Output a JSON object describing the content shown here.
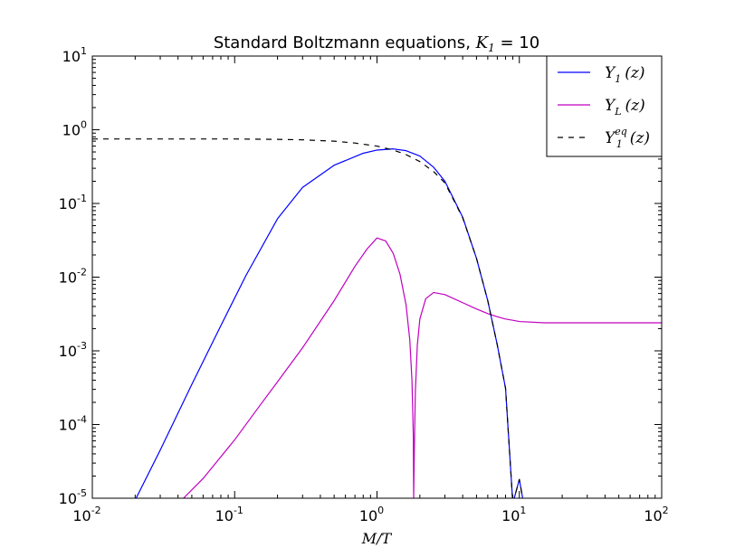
{
  "chart_data": {
    "type": "line",
    "title_text": "Standard Boltzmann equations, ",
    "title_math": "K",
    "title_math_sub": "1",
    "title_tail": " = 10",
    "xlabel": "M/T",
    "xscale": "log",
    "yscale": "log",
    "xlim": [
      0.01,
      100
    ],
    "ylim": [
      1e-05,
      10
    ],
    "x_ticks": [
      {
        "base": "10",
        "exp": "-2"
      },
      {
        "base": "10",
        "exp": "-1"
      },
      {
        "base": "10",
        "exp": "0"
      },
      {
        "base": "10",
        "exp": "1"
      },
      {
        "base": "10",
        "exp": "2"
      }
    ],
    "y_ticks": [
      {
        "base": "10",
        "exp": "-5"
      },
      {
        "base": "10",
        "exp": "-4"
      },
      {
        "base": "10",
        "exp": "-3"
      },
      {
        "base": "10",
        "exp": "-2"
      },
      {
        "base": "10",
        "exp": "-1"
      },
      {
        "base": "10",
        "exp": "0"
      },
      {
        "base": "10",
        "exp": "1"
      }
    ],
    "grid": false,
    "legend_position": "top-right",
    "series": [
      {
        "name": "Y1(z)",
        "legend_main": "Y",
        "legend_sub": "1",
        "legend_sup": "",
        "legend_arg": "(z)",
        "color": "#0000ff",
        "dash": "solid",
        "x": [
          0.0203,
          0.03,
          0.05,
          0.08,
          0.12,
          0.2,
          0.3,
          0.5,
          0.8,
          1.0,
          1.3,
          1.6,
          2.0,
          2.5,
          3.0,
          4.0,
          5.0,
          6.0,
          7.0,
          8.0,
          9.0,
          10.0,
          12.0,
          14.0,
          15.1
        ],
        "y": [
          1e-05,
          4.5e-05,
          0.00035,
          0.0022,
          0.0105,
          0.062,
          0.165,
          0.33,
          0.48,
          0.53,
          0.55,
          0.52,
          0.44,
          0.31,
          0.2,
          0.065,
          0.018,
          0.0048,
          0.0012,
          0.00031,
          8.5e-06,
          1.8e-05,
          2.5e-06,
          1.2e-06,
          1e-05
        ]
      },
      {
        "name": "YL(z)",
        "legend_main": "Y",
        "legend_sub": "L",
        "legend_sup": "",
        "legend_arg": "(z)",
        "color": "#c000c0",
        "dash": "solid",
        "x": [
          0.0437,
          0.06,
          0.1,
          0.15,
          0.2,
          0.3,
          0.5,
          0.7,
          0.85,
          1.0,
          1.15,
          1.3,
          1.45,
          1.6,
          1.7,
          1.76,
          1.8,
          1.81,
          1.83,
          1.86,
          1.92,
          2.0,
          2.2,
          2.5,
          3.0,
          4.0,
          5.0,
          6.0,
          7.0,
          8.0,
          9.0,
          10.0,
          15.0,
          20.0,
          30.0,
          50.0,
          100.0
        ],
        "y": [
          1e-05,
          1.85e-05,
          6.2e-05,
          0.00018,
          0.00038,
          0.0011,
          0.0048,
          0.014,
          0.024,
          0.034,
          0.031,
          0.021,
          0.011,
          0.0042,
          0.0014,
          0.0004,
          7e-05,
          1e-05,
          5e-05,
          0.00028,
          0.0012,
          0.0027,
          0.0051,
          0.0062,
          0.0058,
          0.0045,
          0.0037,
          0.0032,
          0.0029,
          0.0027,
          0.0026,
          0.0025,
          0.0024,
          0.0024,
          0.0024,
          0.0024,
          0.0024
        ]
      },
      {
        "name": "Y1eq(z)",
        "legend_main": "Y",
        "legend_sub": "1",
        "legend_sup": "eq",
        "legend_arg": "(z)",
        "color": "#000000",
        "dash": "dashed",
        "x": [
          0.01,
          0.05,
          0.1,
          0.2,
          0.3,
          0.5,
          0.7,
          1.0,
          1.3,
          1.6,
          2.0,
          2.5,
          3.0,
          4.0,
          5.0,
          6.0,
          7.0,
          8.0,
          9.0,
          10.0,
          12.0,
          14.0,
          15.1
        ],
        "y": [
          0.75,
          0.75,
          0.75,
          0.74,
          0.73,
          0.7,
          0.66,
          0.6,
          0.53,
          0.46,
          0.37,
          0.27,
          0.19,
          0.064,
          0.018,
          0.0048,
          0.0012,
          0.00031,
          8.5e-06,
          1.8e-05,
          2.5e-06,
          1.2e-06,
          1e-05
        ]
      }
    ]
  }
}
